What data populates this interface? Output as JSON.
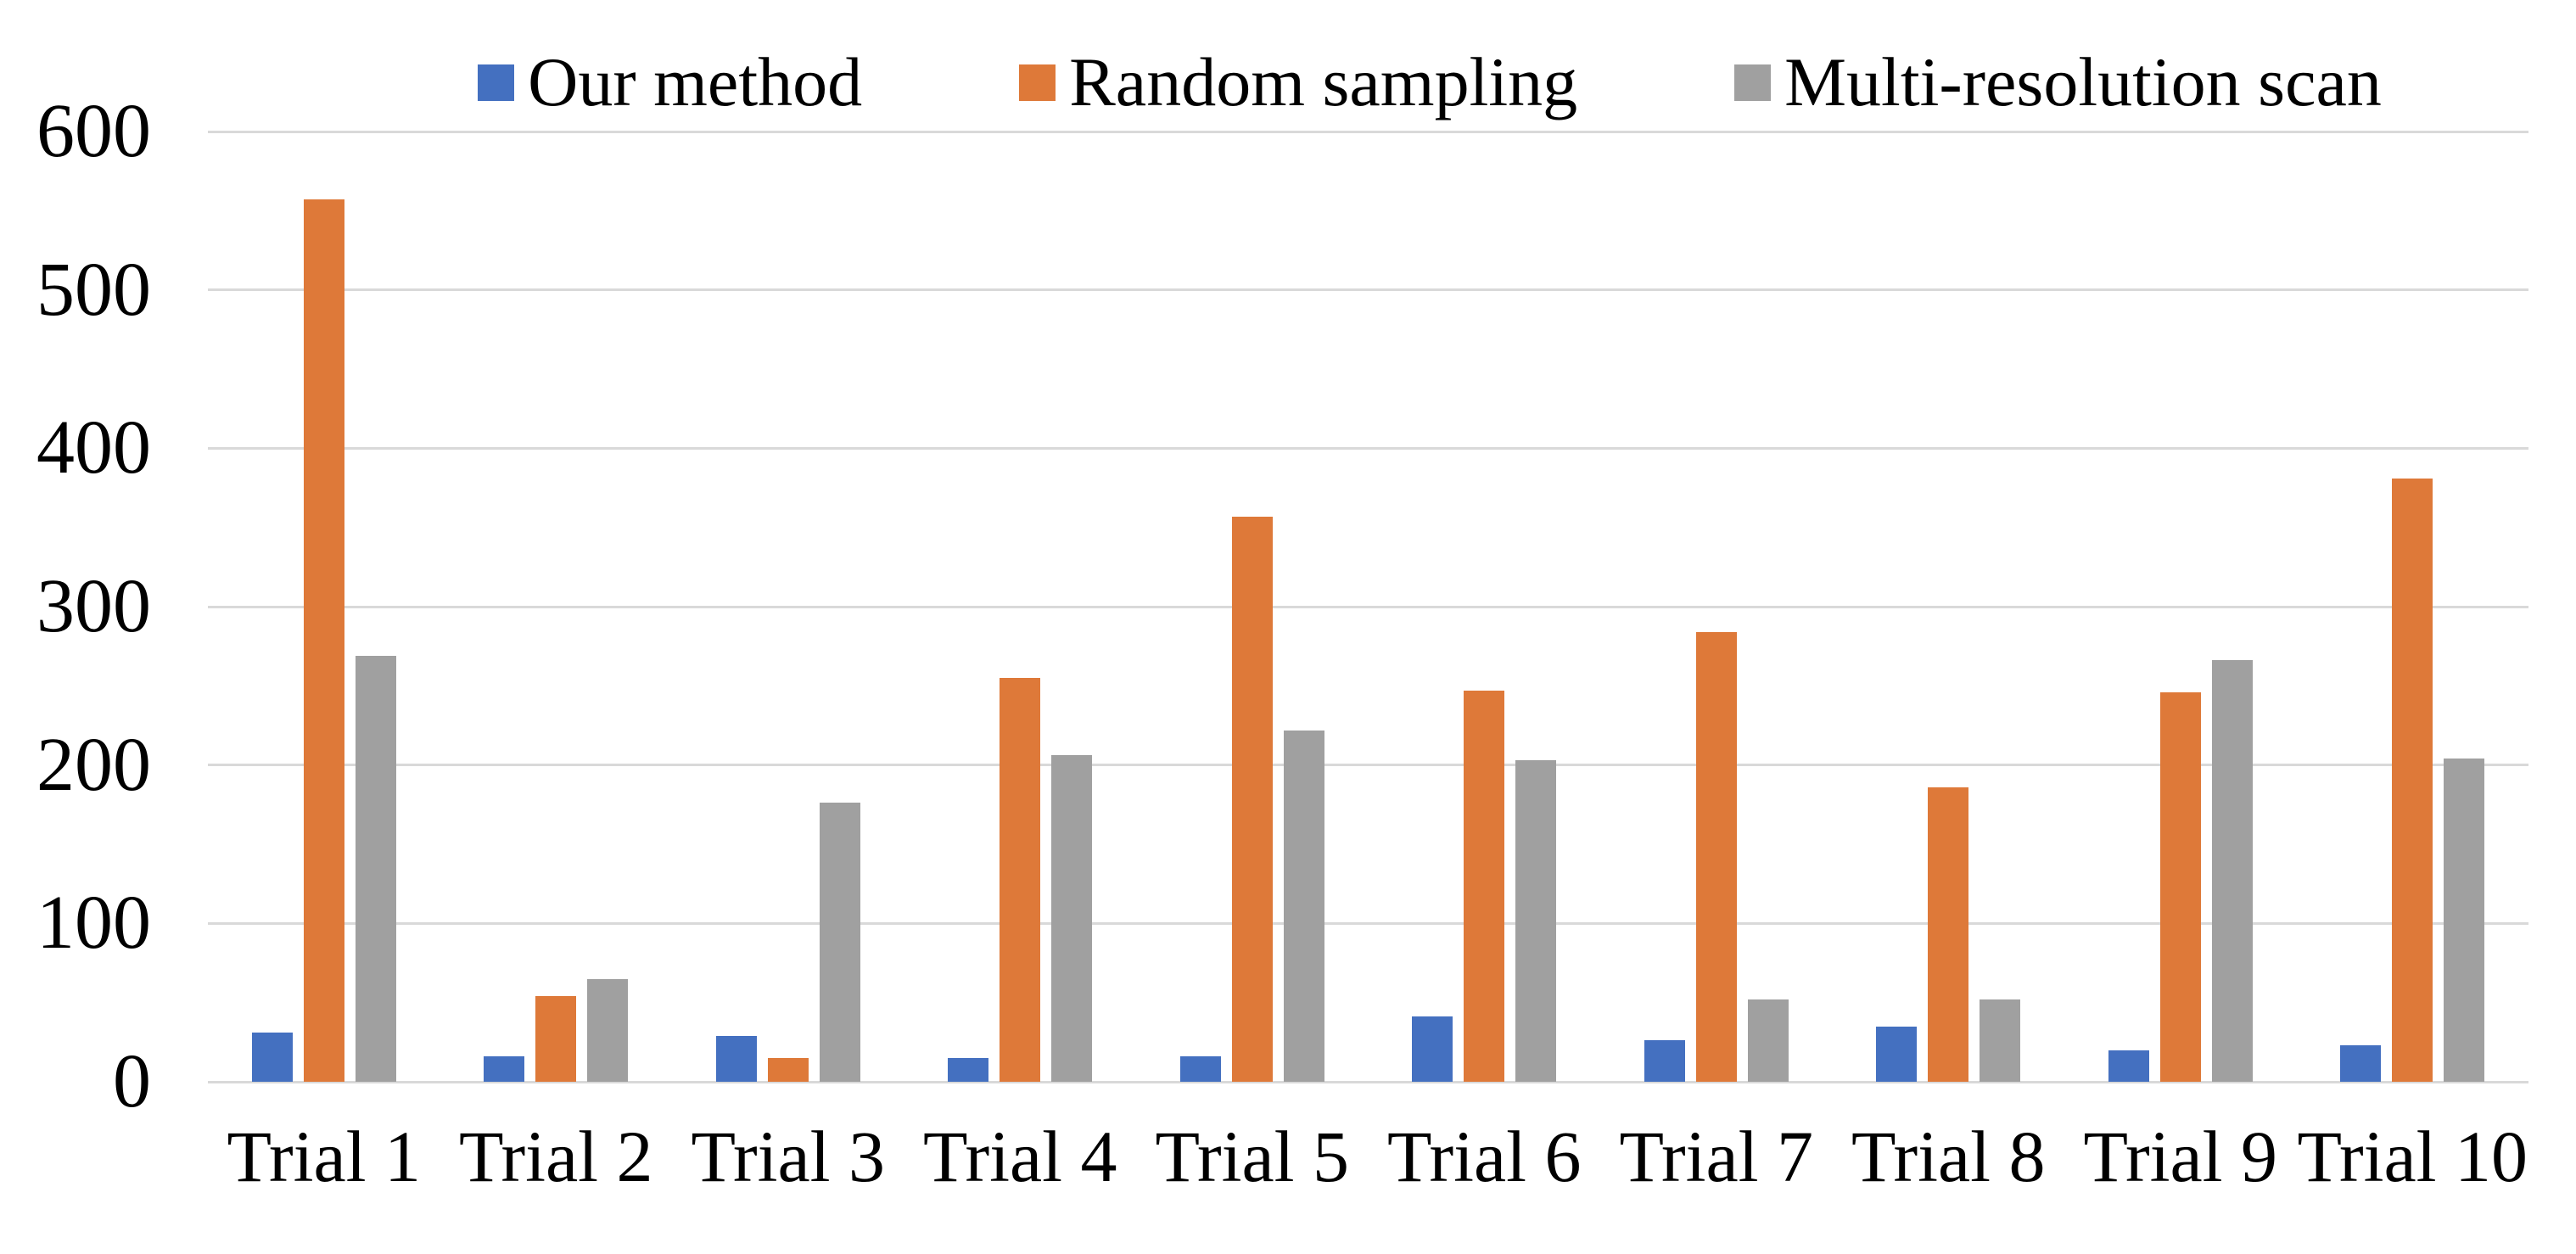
{
  "chart_data": {
    "type": "bar",
    "title": "",
    "categories": [
      "Trial 1",
      "Trial 2",
      "Trial 3",
      "Trial 4",
      "Trial 5",
      "Trial 6",
      "Trial 7",
      "Trial 8",
      "Trial 9",
      "Trial 10"
    ],
    "series": [
      {
        "name": "Our method",
        "color": "#4470C0",
        "values": [
          31,
          16,
          29,
          15,
          16,
          41,
          26,
          35,
          20,
          23
        ]
      },
      {
        "name": "Random sampling",
        "color": "#DE7939",
        "values": [
          557,
          54,
          15,
          255,
          357,
          247,
          284,
          186,
          246,
          381
        ]
      },
      {
        "name": "Multi-resolution scan",
        "color": "#A0A0A0",
        "values": [
          269,
          65,
          176,
          206,
          222,
          203,
          52,
          52,
          266,
          204
        ]
      }
    ],
    "xlabel": "",
    "ylabel": "",
    "ylim": [
      0,
      600
    ],
    "yticks": [
      0,
      100,
      200,
      300,
      400,
      500,
      600
    ],
    "grid": "horizontal",
    "gridline_color": "#D9D9D9",
    "legend_position": "top",
    "background_color": "#FFFFFF",
    "text_color": "#000000"
  }
}
